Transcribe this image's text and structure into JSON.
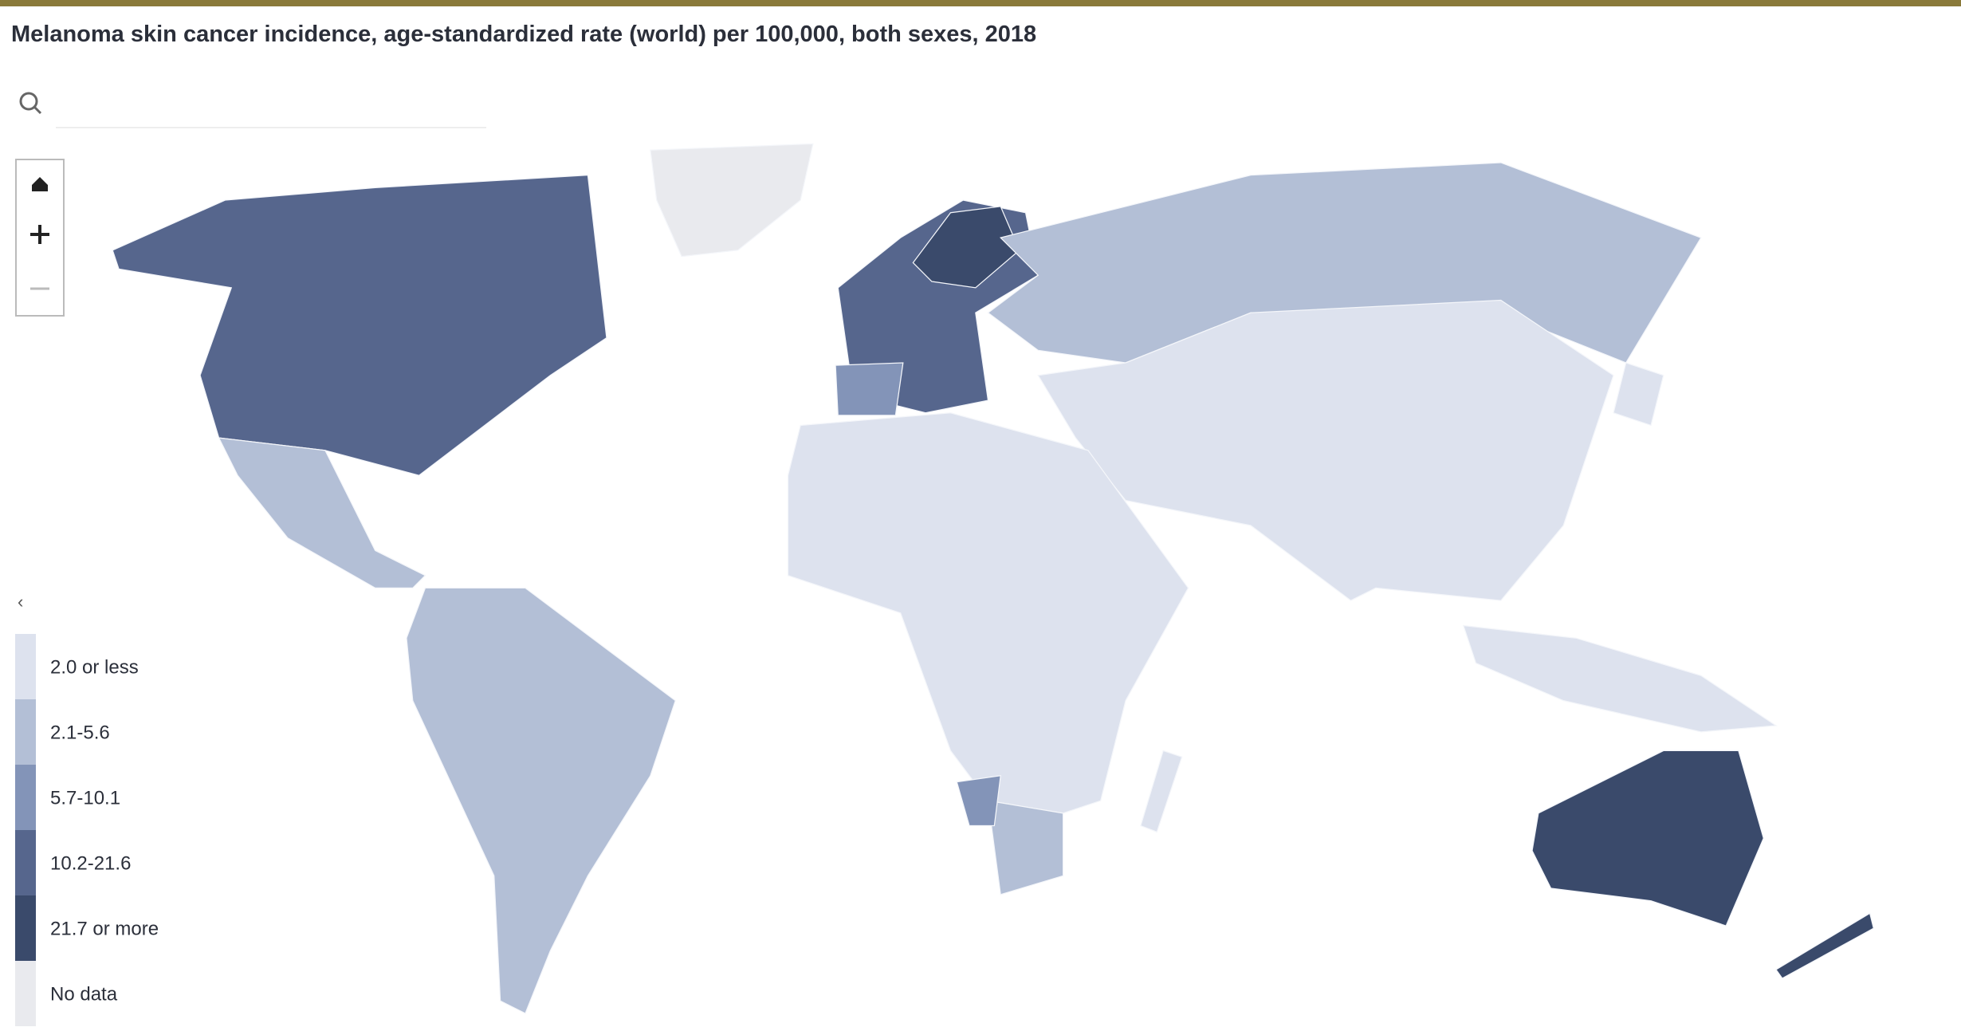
{
  "title": "Melanoma skin cancer incidence, age-standardized rate (world) per 100,000, both sexes, 2018",
  "legend": {
    "items": [
      {
        "label": "2.0 or less",
        "color": "#dde2ee"
      },
      {
        "label": "2.1-5.6",
        "color": "#b3bfd6"
      },
      {
        "label": "5.7-10.1",
        "color": "#8394b8"
      },
      {
        "label": "10.2-21.6",
        "color": "#56668d"
      },
      {
        "label": "21.7 or more",
        "color": "#3a4a6b"
      },
      {
        "label": "No data",
        "color": "#e9eaee"
      }
    ]
  }
}
